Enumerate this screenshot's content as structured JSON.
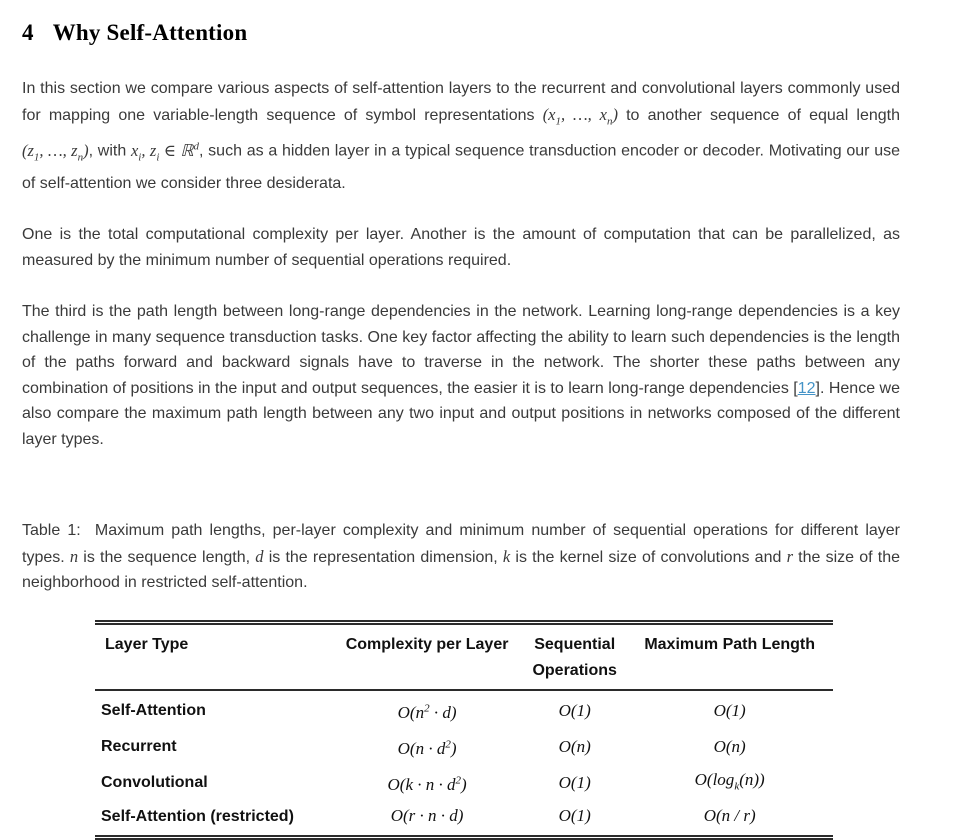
{
  "heading": {
    "number": "4",
    "title": "Why Self-Attention"
  },
  "paragraphs": [
    {
      "name": "paragraph-1",
      "segments": [
        {
          "t": "text",
          "v": "In this section we compare various aspects of self-attention layers to the recurrent and convolutional layers commonly used for mapping one variable-length sequence of symbol representations "
        },
        {
          "t": "math",
          "v": "(x_1, …, x_n)"
        },
        {
          "t": "text",
          "v": " to another sequence of equal length "
        },
        {
          "t": "math",
          "v": "(z_1, …, z_n)"
        },
        {
          "t": "text",
          "v": ", with "
        },
        {
          "t": "math",
          "v": "x_i, z_i ∈ ℝ^d"
        },
        {
          "t": "text",
          "v": ", such as a hidden layer in a typical sequence transduction encoder or decoder. Motivating our use of self-attention we consider three desiderata."
        }
      ]
    },
    {
      "name": "paragraph-2",
      "segments": [
        {
          "t": "text",
          "v": "One is the total computational complexity per layer. Another is the amount of computation that can be parallelized, as measured by the minimum number of sequential operations required."
        }
      ]
    },
    {
      "name": "paragraph-3",
      "segments": [
        {
          "t": "text",
          "v": "The third is the path length between long-range dependencies in the network. Learning long-range dependencies is a key challenge in many sequence transduction tasks. One key factor affecting the ability to learn such dependencies is the length of the paths forward and backward signals have to traverse in the network. The shorter these paths between any combination of positions in the input and output sequences, the easier it is to learn long-range dependencies ["
        },
        {
          "t": "link",
          "v": "12"
        },
        {
          "t": "text",
          "v": "]. Hence we also compare the maximum path length between any two input and output positions in networks composed of the different layer types."
        }
      ]
    }
  ],
  "table_caption": {
    "segments": [
      {
        "t": "text",
        "v": "Table 1:  Maximum path lengths, per-layer complexity and minimum number of sequential operations for different layer types. "
      },
      {
        "t": "math",
        "v": "n"
      },
      {
        "t": "text",
        "v": " is the sequence length, "
      },
      {
        "t": "math",
        "v": "d"
      },
      {
        "t": "text",
        "v": " is the representation dimension, "
      },
      {
        "t": "math",
        "v": "k"
      },
      {
        "t": "text",
        "v": " is the kernel size of convolutions and "
      },
      {
        "t": "math",
        "v": "r"
      },
      {
        "t": "text",
        "v": " the size of the neighborhood in restricted self-attention."
      }
    ]
  },
  "table": {
    "headers": [
      "Layer Type",
      "Complexity per Layer",
      "Sequential Operations",
      "Maximum Path Length"
    ],
    "rows": [
      {
        "layer_type": "Self-Attention",
        "complexity": "O(n^2 · d)",
        "sequential": "O(1)",
        "max_path": "O(1)"
      },
      {
        "layer_type": "Recurrent",
        "complexity": "O(n · d^2)",
        "sequential": "O(n)",
        "max_path": "O(n)"
      },
      {
        "layer_type": "Convolutional",
        "complexity": "O(k · n · d^2)",
        "sequential": "O(1)",
        "max_path": "O(log_k(n))"
      },
      {
        "layer_type": "Self-Attention (restricted)",
        "complexity": "O(r · n · d)",
        "sequential": "O(1)",
        "max_path": "O(n / r)"
      }
    ]
  },
  "citation": {
    "label": "12"
  },
  "colors": {
    "body_text": "#3a3a3a",
    "heading_text": "#000000",
    "link_blue": "#4493c7",
    "table_rule": "#2b2b2b"
  }
}
